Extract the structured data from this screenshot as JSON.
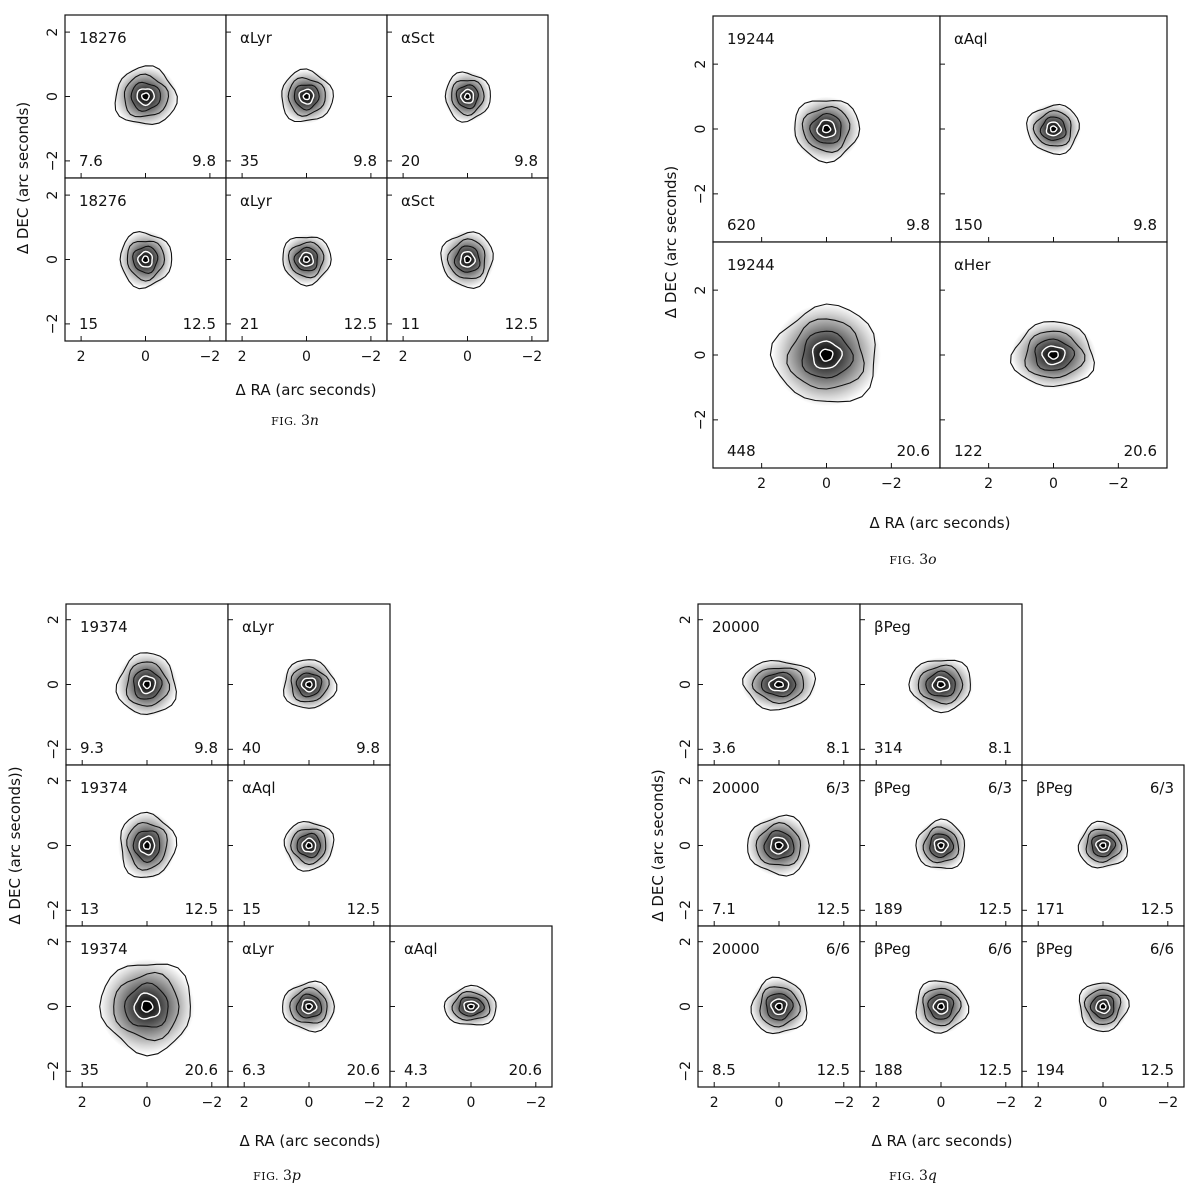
{
  "axis_labels": {
    "xlabel": "Δ RA (arc seconds)",
    "ylabel": "Δ DEC (arc seconds)",
    "ylabel_3p": "Δ DEC (arc seconds))"
  },
  "x_ticks": [
    "2",
    "0",
    "−2"
  ],
  "y_ticks": [
    "−2",
    "0",
    "2"
  ],
  "figures": [
    {
      "id": "3n",
      "caption_prefix": "Fig.",
      "caption_number": "3",
      "caption_letter": "n",
      "rows": [
        [
          {
            "label": "18276",
            "peak": "7.6",
            "wavelength": "9.8",
            "sx": 0.95,
            "sy": 0.9
          },
          {
            "label": "αLyr",
            "peak": "35",
            "wavelength": "9.8",
            "sx": 0.8,
            "sy": 0.8
          },
          {
            "label": "αSct",
            "peak": "20",
            "wavelength": "9.8",
            "sx": 0.7,
            "sy": 0.75
          }
        ],
        [
          {
            "label": "18276",
            "peak": "15",
            "wavelength": "12.5",
            "sx": 0.8,
            "sy": 0.85
          },
          {
            "label": "αLyr",
            "peak": "21",
            "wavelength": "12.5",
            "sx": 0.75,
            "sy": 0.75
          },
          {
            "label": "αSct",
            "peak": "11",
            "wavelength": "12.5",
            "sx": 0.8,
            "sy": 0.85
          }
        ]
      ]
    },
    {
      "id": "3o",
      "caption_prefix": "Fig.",
      "caption_number": "3",
      "caption_letter": "o",
      "rows": [
        [
          {
            "label": "19244",
            "peak": "620",
            "wavelength": "9.8",
            "sx": 1.0,
            "sy": 0.95
          },
          {
            "label": "αAql",
            "peak": "150",
            "wavelength": "9.8",
            "sx": 0.8,
            "sy": 0.75
          }
        ],
        [
          {
            "label": "19244",
            "peak": "448",
            "wavelength": "20.6",
            "sx": 1.6,
            "sy": 1.5
          },
          {
            "label": "αHer",
            "peak": "122",
            "wavelength": "20.6",
            "sx": 1.25,
            "sy": 1.0
          }
        ]
      ]
    },
    {
      "id": "3p",
      "caption_prefix": "Fig.",
      "caption_number": "3",
      "caption_letter": "p",
      "rows": [
        [
          {
            "label": "19374",
            "peak": "9.3",
            "wavelength": "9.8",
            "sx": 0.9,
            "sy": 0.95
          },
          {
            "label": "αLyr",
            "peak": "40",
            "wavelength": "9.8",
            "sx": 0.8,
            "sy": 0.75
          }
        ],
        [
          {
            "label": "19374",
            "peak": "13",
            "wavelength": "12.5",
            "sx": 0.85,
            "sy": 1.0
          },
          {
            "label": "αAql",
            "peak": "15",
            "wavelength": "12.5",
            "sx": 0.75,
            "sy": 0.75
          }
        ],
        [
          {
            "label": "19374",
            "peak": "35",
            "wavelength": "20.6",
            "sx": 1.4,
            "sy": 1.4
          },
          {
            "label": "αLyr",
            "peak": "6.3",
            "wavelength": "20.6",
            "sx": 0.8,
            "sy": 0.75
          },
          {
            "label": "αAql",
            "peak": "4.3",
            "wavelength": "20.6",
            "sx": 0.8,
            "sy": 0.6
          }
        ]
      ]
    },
    {
      "id": "3q",
      "caption_prefix": "Fig.",
      "caption_number": "3",
      "caption_letter": "q",
      "rows": [
        [
          {
            "label": "20000",
            "peak": "3.6",
            "wavelength": "8.1",
            "sx": 1.1,
            "sy": 0.75
          },
          {
            "label": "βPeg",
            "peak": "314",
            "wavelength": "8.1",
            "sx": 0.95,
            "sy": 0.8
          }
        ],
        [
          {
            "label": "20000",
            "peak": "7.1",
            "wavelength": "12.5",
            "ratio": "6/3",
            "sx": 0.95,
            "sy": 0.9
          },
          {
            "label": "βPeg",
            "peak": "189",
            "wavelength": "12.5",
            "ratio": "6/3",
            "sx": 0.75,
            "sy": 0.75
          },
          {
            "label": "βPeg",
            "peak": "171",
            "wavelength": "12.5",
            "ratio": "6/3",
            "sx": 0.75,
            "sy": 0.7
          }
        ],
        [
          {
            "label": "20000",
            "peak": "8.5",
            "wavelength": "12.5",
            "ratio": "6/6",
            "sx": 0.85,
            "sy": 0.85
          },
          {
            "label": "βPeg",
            "peak": "188",
            "wavelength": "12.5",
            "ratio": "6/6",
            "sx": 0.8,
            "sy": 0.8
          },
          {
            "label": "βPeg",
            "peak": "194",
            "wavelength": "12.5",
            "ratio": "6/6",
            "sx": 0.75,
            "sy": 0.75
          }
        ]
      ]
    }
  ]
}
